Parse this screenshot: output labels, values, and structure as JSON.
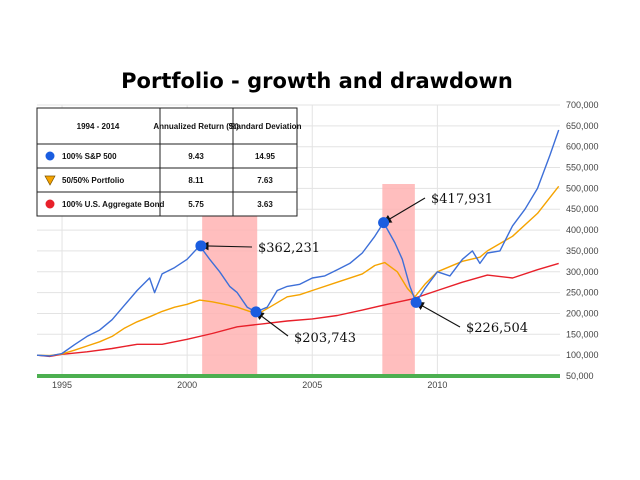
{
  "chart_data": {
    "type": "line",
    "title": "Portfolio - growth and drawdown",
    "xlabel": "",
    "ylabel": "",
    "x_ticks": [
      "1995",
      "2000",
      "2005",
      "2010"
    ],
    "y_ticks": [
      "50,000",
      "100,000",
      "150,000",
      "200,000",
      "250,000",
      "300,000",
      "350,000",
      "400,000",
      "450,000",
      "500,000",
      "550,000",
      "600,000",
      "650,000",
      "700,000"
    ],
    "xlim": [
      1994.0,
      2014.9
    ],
    "ylim": [
      50000,
      700000
    ],
    "y_axis_side": "right",
    "grid": true,
    "colors": {
      "sp500": "#3d6fd8",
      "balanced": "#f5a300",
      "bond": "#e8202a",
      "shade": "#ffb3b3",
      "baseline": "#4caf50"
    },
    "table": {
      "header": [
        "1994 - 2014",
        "Annualized Return (%)",
        "Standard Deviation"
      ],
      "rows": [
        {
          "marker": "circle-blue",
          "name": "100% S&P 500",
          "ret": "9.43",
          "sd": "14.95"
        },
        {
          "marker": "triangle-orange",
          "name": "50/50% Portfolio",
          "ret": "8.11",
          "sd": "7.63"
        },
        {
          "marker": "circle-red",
          "name": "100% U.S. Aggregate Bond",
          "ret": "5.75",
          "sd": "3.63"
        }
      ]
    },
    "shaded_periods": [
      [
        2000.6,
        2002.8
      ],
      [
        2007.8,
        2009.1
      ]
    ],
    "series": [
      {
        "name": "100% S&P 500",
        "color": "#3d6fd8",
        "x": [
          1994.0,
          1994.5,
          1995.0,
          1995.5,
          1996.0,
          1996.5,
          1997.0,
          1997.5,
          1998.0,
          1998.5,
          1998.7,
          1999.0,
          1999.5,
          2000.0,
          2000.5,
          2000.9,
          2001.3,
          2001.7,
          2002.0,
          2002.4,
          2002.75,
          2003.2,
          2003.6,
          2004.0,
          2004.5,
          2005.0,
          2005.5,
          2006.0,
          2006.5,
          2007.0,
          2007.5,
          2007.85,
          2008.3,
          2008.6,
          2008.9,
          2009.15,
          2009.5,
          2010.0,
          2010.5,
          2011.0,
          2011.4,
          2011.7,
          2012.0,
          2012.5,
          2013.0,
          2013.5,
          2014.0,
          2014.5,
          2014.85
        ],
        "values": [
          100000,
          98000,
          104000,
          125000,
          145000,
          160000,
          185000,
          220000,
          255000,
          285000,
          250000,
          295000,
          310000,
          330000,
          362231,
          330000,
          300000,
          265000,
          250000,
          215000,
          203743,
          215000,
          255000,
          265000,
          270000,
          285000,
          290000,
          305000,
          320000,
          345000,
          385000,
          417931,
          370000,
          330000,
          265000,
          226504,
          260000,
          300000,
          290000,
          330000,
          350000,
          320000,
          345000,
          350000,
          410000,
          450000,
          500000,
          580000,
          640000
        ]
      },
      {
        "name": "50/50% Portfolio",
        "color": "#f5a300",
        "x": [
          1994.0,
          1994.5,
          1995.0,
          1995.5,
          1996.0,
          1996.5,
          1997.0,
          1997.5,
          1998.0,
          1998.5,
          1999.0,
          1999.5,
          2000.0,
          2000.5,
          2001.0,
          2001.5,
          2002.0,
          2002.5,
          2002.8,
          2003.3,
          2004.0,
          2004.5,
          2005.0,
          2006.0,
          2007.0,
          2007.5,
          2007.9,
          2008.4,
          2008.8,
          2009.1,
          2009.5,
          2010.0,
          2011.0,
          2011.7,
          2012.0,
          2013.0,
          2014.0,
          2014.85
        ],
        "values": [
          100000,
          99000,
          103000,
          112000,
          122000,
          132000,
          145000,
          165000,
          180000,
          192000,
          205000,
          215000,
          222000,
          232000,
          228000,
          222000,
          215000,
          205000,
          198000,
          215000,
          240000,
          245000,
          255000,
          275000,
          295000,
          315000,
          322000,
          300000,
          260000,
          240000,
          270000,
          300000,
          325000,
          335000,
          350000,
          385000,
          440000,
          505000
        ]
      },
      {
        "name": "100% U.S. Aggregate Bond",
        "color": "#e8202a",
        "x": [
          1994.0,
          1994.5,
          1995.0,
          1996.0,
          1997.0,
          1998.0,
          1999.0,
          2000.0,
          2001.0,
          2002.0,
          2003.0,
          2004.0,
          2005.0,
          2006.0,
          2007.0,
          2008.0,
          2009.0,
          2010.0,
          2011.0,
          2012.0,
          2013.0,
          2014.0,
          2014.85
        ],
        "values": [
          100000,
          97000,
          102000,
          108000,
          116000,
          126000,
          126000,
          138000,
          152000,
          168000,
          175000,
          182000,
          187000,
          195000,
          208000,
          222000,
          235000,
          255000,
          275000,
          292000,
          285000,
          305000,
          320000
        ]
      }
    ],
    "annotations": [
      {
        "label": "$362,231",
        "x": 2000.55,
        "y": 362231
      },
      {
        "label": "$203,743",
        "x": 2002.75,
        "y": 203743
      },
      {
        "label": "$417,931",
        "x": 2007.85,
        "y": 417931
      },
      {
        "label": "$226,504",
        "x": 2009.15,
        "y": 226504
      }
    ]
  }
}
